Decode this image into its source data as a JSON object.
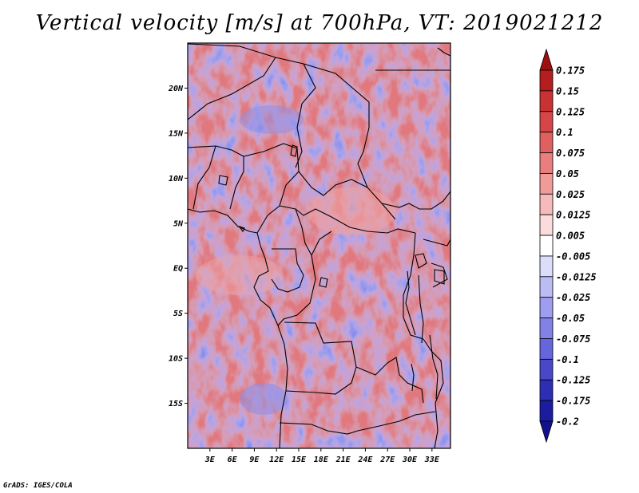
{
  "title": "Vertical velocity [m/s] at 700hPa, VT: 2019021212",
  "credit": "GrADS: IGES/COLA",
  "map": {
    "lon_range": [
      0,
      35.5
    ],
    "lat_range": [
      -20,
      25
    ],
    "lat_ticks": [
      {
        "label": "20N",
        "value": 20
      },
      {
        "label": "15N",
        "value": 15
      },
      {
        "label": "10N",
        "value": 10
      },
      {
        "label": "5N",
        "value": 5
      },
      {
        "label": "EQ",
        "value": 0
      },
      {
        "label": "5S",
        "value": -5
      },
      {
        "label": "10S",
        "value": -10
      },
      {
        "label": "15S",
        "value": -15
      }
    ],
    "lon_ticks": [
      {
        "label": "3E",
        "value": 3
      },
      {
        "label": "6E",
        "value": 6
      },
      {
        "label": "9E",
        "value": 9
      },
      {
        "label": "12E",
        "value": 12
      },
      {
        "label": "15E",
        "value": 15
      },
      {
        "label": "18E",
        "value": 18
      },
      {
        "label": "21E",
        "value": 21
      },
      {
        "label": "24E",
        "value": 24
      },
      {
        "label": "27E",
        "value": 27
      },
      {
        "label": "30E",
        "value": 30
      },
      {
        "label": "33E",
        "value": 33
      }
    ],
    "colors": {
      "background": "#ffffff",
      "border": "#000000"
    }
  },
  "colorbar": {
    "levels": [
      "0.175",
      "0.15",
      "0.125",
      "0.1",
      "0.075",
      "0.05",
      "0.025",
      "0.0125",
      "0.005",
      "-0.005",
      "-0.0125",
      "-0.025",
      "-0.05",
      "-0.075",
      "-0.1",
      "-0.125",
      "-0.175",
      "-0.2"
    ],
    "colors": [
      "#9e1010",
      "#b41e1e",
      "#c83232",
      "#d64646",
      "#e06060",
      "#e87e7e",
      "#f09a9a",
      "#f6baba",
      "#fbdcdc",
      "#ffffff",
      "#dcdcfb",
      "#bcbcf4",
      "#9e9ef0",
      "#8282e6",
      "#6666dc",
      "#4848c8",
      "#2e2eb4",
      "#1c1ca0",
      "#12128a"
    ]
  }
}
